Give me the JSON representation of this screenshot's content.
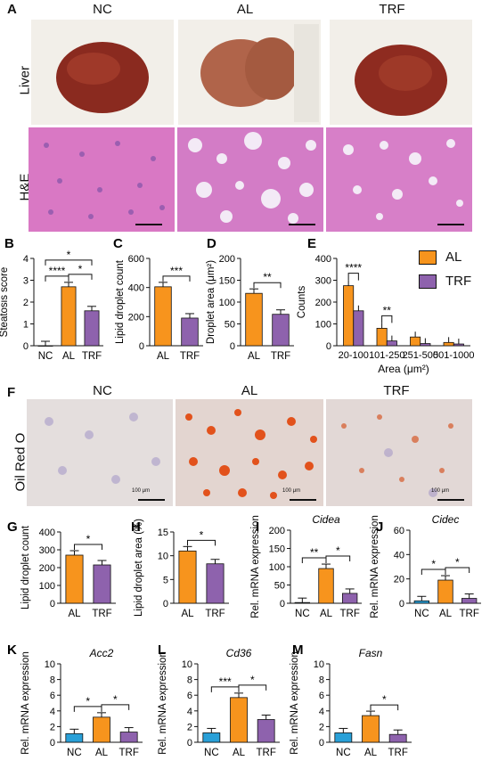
{
  "panels": {
    "A": {
      "label": "A",
      "groups": [
        "NC",
        "AL",
        "TRF"
      ],
      "rows": [
        "Liver",
        "H&E"
      ]
    },
    "F": {
      "label": "F",
      "groups": [
        "NC",
        "AL",
        "TRF"
      ],
      "row": "Oil Red O",
      "scale": "100 μm"
    }
  },
  "colors": {
    "NC": "#29a0d8",
    "AL": "#f7941d",
    "TRF": "#8e62ad"
  },
  "legend": [
    {
      "name": "AL",
      "color": "#f7941d"
    },
    {
      "name": "TRF",
      "color": "#8e62ad"
    }
  ],
  "chart_data": [
    {
      "panel": "B",
      "type": "bar",
      "categories": [
        "NC",
        "AL",
        "TRF"
      ],
      "values": [
        0,
        2.7,
        1.6
      ],
      "ylabel": "Steatosis score",
      "ylim": [
        0,
        4
      ],
      "yticks": [
        0,
        1,
        2,
        3,
        4
      ],
      "sig": [
        {
          "a": 0,
          "b": 1,
          "label": "****"
        },
        {
          "a": 1,
          "b": 2,
          "label": "*"
        },
        {
          "a": 0,
          "b": 2,
          "label": "*"
        }
      ]
    },
    {
      "panel": "C",
      "type": "bar",
      "categories": [
        "AL",
        "TRF"
      ],
      "values": [
        405,
        190
      ],
      "ylabel": "Lipid droplet count",
      "ylim": [
        0,
        600
      ],
      "yticks": [
        0,
        200,
        400,
        600
      ],
      "sig": [
        {
          "a": 0,
          "b": 1,
          "label": "***"
        }
      ]
    },
    {
      "panel": "D",
      "type": "bar",
      "categories": [
        "AL",
        "TRF"
      ],
      "values": [
        120,
        72
      ],
      "ylabel": "Droplet area (μm²)",
      "ylim": [
        0,
        200
      ],
      "yticks": [
        0,
        50,
        100,
        150,
        200
      ],
      "sig": [
        {
          "a": 0,
          "b": 1,
          "label": "**"
        }
      ]
    },
    {
      "panel": "E",
      "type": "bar",
      "categories": [
        "20-100",
        "101-250",
        "251-500",
        "501-1000"
      ],
      "xlabel": "Area (μm²)",
      "ylabel": "Counts",
      "ylim": [
        0,
        400
      ],
      "yticks": [
        0,
        100,
        200,
        300,
        400
      ],
      "series": [
        {
          "name": "AL",
          "values": [
            275,
            80,
            40,
            15
          ]
        },
        {
          "name": "TRF",
          "values": [
            160,
            22,
            10,
            8
          ]
        }
      ],
      "sig": [
        {
          "cat": 0,
          "label": "****"
        },
        {
          "cat": 1,
          "label": "**"
        }
      ]
    },
    {
      "panel": "G",
      "type": "bar",
      "categories": [
        "AL",
        "TRF"
      ],
      "values": [
        270,
        215
      ],
      "ylabel": "Lipid droplet count",
      "ylim": [
        0,
        400
      ],
      "yticks": [
        0,
        100,
        200,
        300,
        400
      ],
      "sig": [
        {
          "a": 0,
          "b": 1,
          "label": "*"
        }
      ]
    },
    {
      "panel": "H",
      "type": "bar",
      "categories": [
        "AL",
        "TRF"
      ],
      "values": [
        11,
        8.3
      ],
      "ylabel": "Lipid droplet area (%)",
      "ylim": [
        0,
        15
      ],
      "yticks": [
        0,
        5,
        10,
        15
      ],
      "sig": [
        {
          "a": 0,
          "b": 1,
          "label": "*"
        }
      ]
    },
    {
      "panel": "I",
      "type": "bar",
      "title": "Cidea",
      "categories": [
        "NC",
        "AL",
        "TRF"
      ],
      "values": [
        2,
        95,
        27
      ],
      "ylabel": "Rel. mRNA expression",
      "ylim": [
        0,
        200
      ],
      "yticks": [
        0,
        50,
        100,
        150,
        200
      ],
      "sig": [
        {
          "a": 0,
          "b": 1,
          "label": "**"
        },
        {
          "a": 1,
          "b": 2,
          "label": "*"
        }
      ]
    },
    {
      "panel": "J",
      "type": "bar",
      "title": "Cidec",
      "categories": [
        "NC",
        "AL",
        "TRF"
      ],
      "values": [
        2,
        19,
        4
      ],
      "ylabel": "Rel. mRNA expression",
      "ylim": [
        0,
        60
      ],
      "yticks": [
        0,
        20,
        40,
        60
      ],
      "sig": [
        {
          "a": 0,
          "b": 1,
          "label": "*"
        },
        {
          "a": 1,
          "b": 2,
          "label": "*"
        }
      ]
    },
    {
      "panel": "K",
      "type": "bar",
      "title": "Acc2",
      "categories": [
        "NC",
        "AL",
        "TRF"
      ],
      "values": [
        1.1,
        3.2,
        1.3
      ],
      "ylabel": "Rel. mRNA expression",
      "ylim": [
        0,
        10
      ],
      "yticks": [
        0,
        2,
        4,
        6,
        8,
        10
      ],
      "sig": [
        {
          "a": 0,
          "b": 1,
          "label": "*"
        },
        {
          "a": 1,
          "b": 2,
          "label": "*"
        }
      ]
    },
    {
      "panel": "L",
      "type": "bar",
      "title": "Cd36",
      "categories": [
        "NC",
        "AL",
        "TRF"
      ],
      "values": [
        1.2,
        5.7,
        2.9
      ],
      "ylabel": "Rel. mRNA expression",
      "ylim": [
        0,
        10
      ],
      "yticks": [
        0,
        2,
        4,
        6,
        8,
        10
      ],
      "sig": [
        {
          "a": 0,
          "b": 1,
          "label": "***"
        },
        {
          "a": 1,
          "b": 2,
          "label": "*"
        }
      ]
    },
    {
      "panel": "M",
      "type": "bar",
      "title": "Fasn",
      "categories": [
        "NC",
        "AL",
        "TRF"
      ],
      "values": [
        1.2,
        3.4,
        1.0
      ],
      "ylabel": "Rel. mRNA expression",
      "ylim": [
        0,
        10
      ],
      "yticks": [
        0,
        2,
        4,
        6,
        8,
        10
      ],
      "sig": [
        {
          "a": 1,
          "b": 2,
          "label": "*"
        }
      ]
    }
  ]
}
